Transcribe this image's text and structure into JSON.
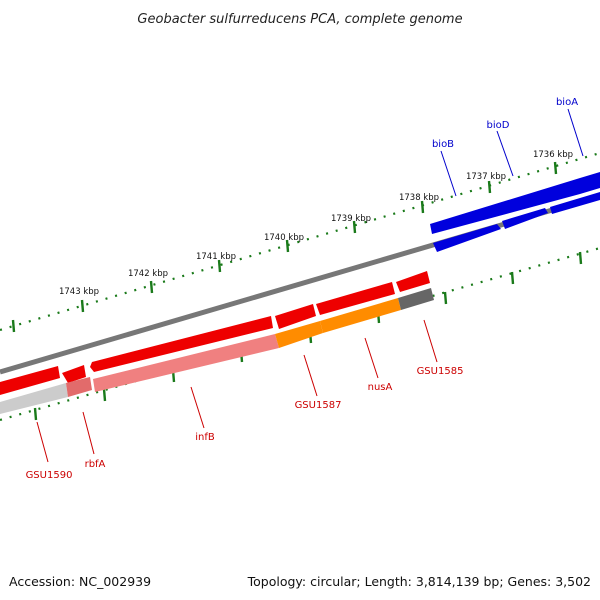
{
  "title": "Geobacter sulfurreducens PCA, complete genome",
  "footer": {
    "accession": "Accession: NC_002939",
    "topology": "Topology: circular; Length: 3,814,139 bp; Genes: 3,502"
  },
  "scale_labels": [
    "1736 kbp",
    "1737 kbp",
    "1738 kbp",
    "1739 kbp",
    "1740 kbp",
    "1741 kbp",
    "1742 kbp",
    "1743 kbp"
  ],
  "genes": [
    {
      "name": "bioA",
      "color": "#0000cc",
      "strand": "forward"
    },
    {
      "name": "bioD",
      "color": "#0000cc",
      "strand": "forward"
    },
    {
      "name": "bioB",
      "color": "#0000cc",
      "strand": "forward"
    },
    {
      "name": "GSU1585",
      "color": "#cc0000",
      "strand": "reverse"
    },
    {
      "name": "nusA",
      "color": "#cc0000",
      "strand": "reverse"
    },
    {
      "name": "GSU1587",
      "color": "#cc0000",
      "strand": "reverse"
    },
    {
      "name": "infB",
      "color": "#cc0000",
      "strand": "reverse"
    },
    {
      "name": "rbfA",
      "color": "#cc0000",
      "strand": "reverse"
    },
    {
      "name": "GSU1590",
      "color": "#cc0000",
      "strand": "reverse"
    }
  ],
  "colors": {
    "forward_gene": "#0000dd",
    "reverse_gene": "#ee0000",
    "cds_light": "#f08080",
    "cds_orange": "#ff8c00",
    "cds_gray": "#666666",
    "backbone": "#777777",
    "tick": "#1a7a1a"
  }
}
